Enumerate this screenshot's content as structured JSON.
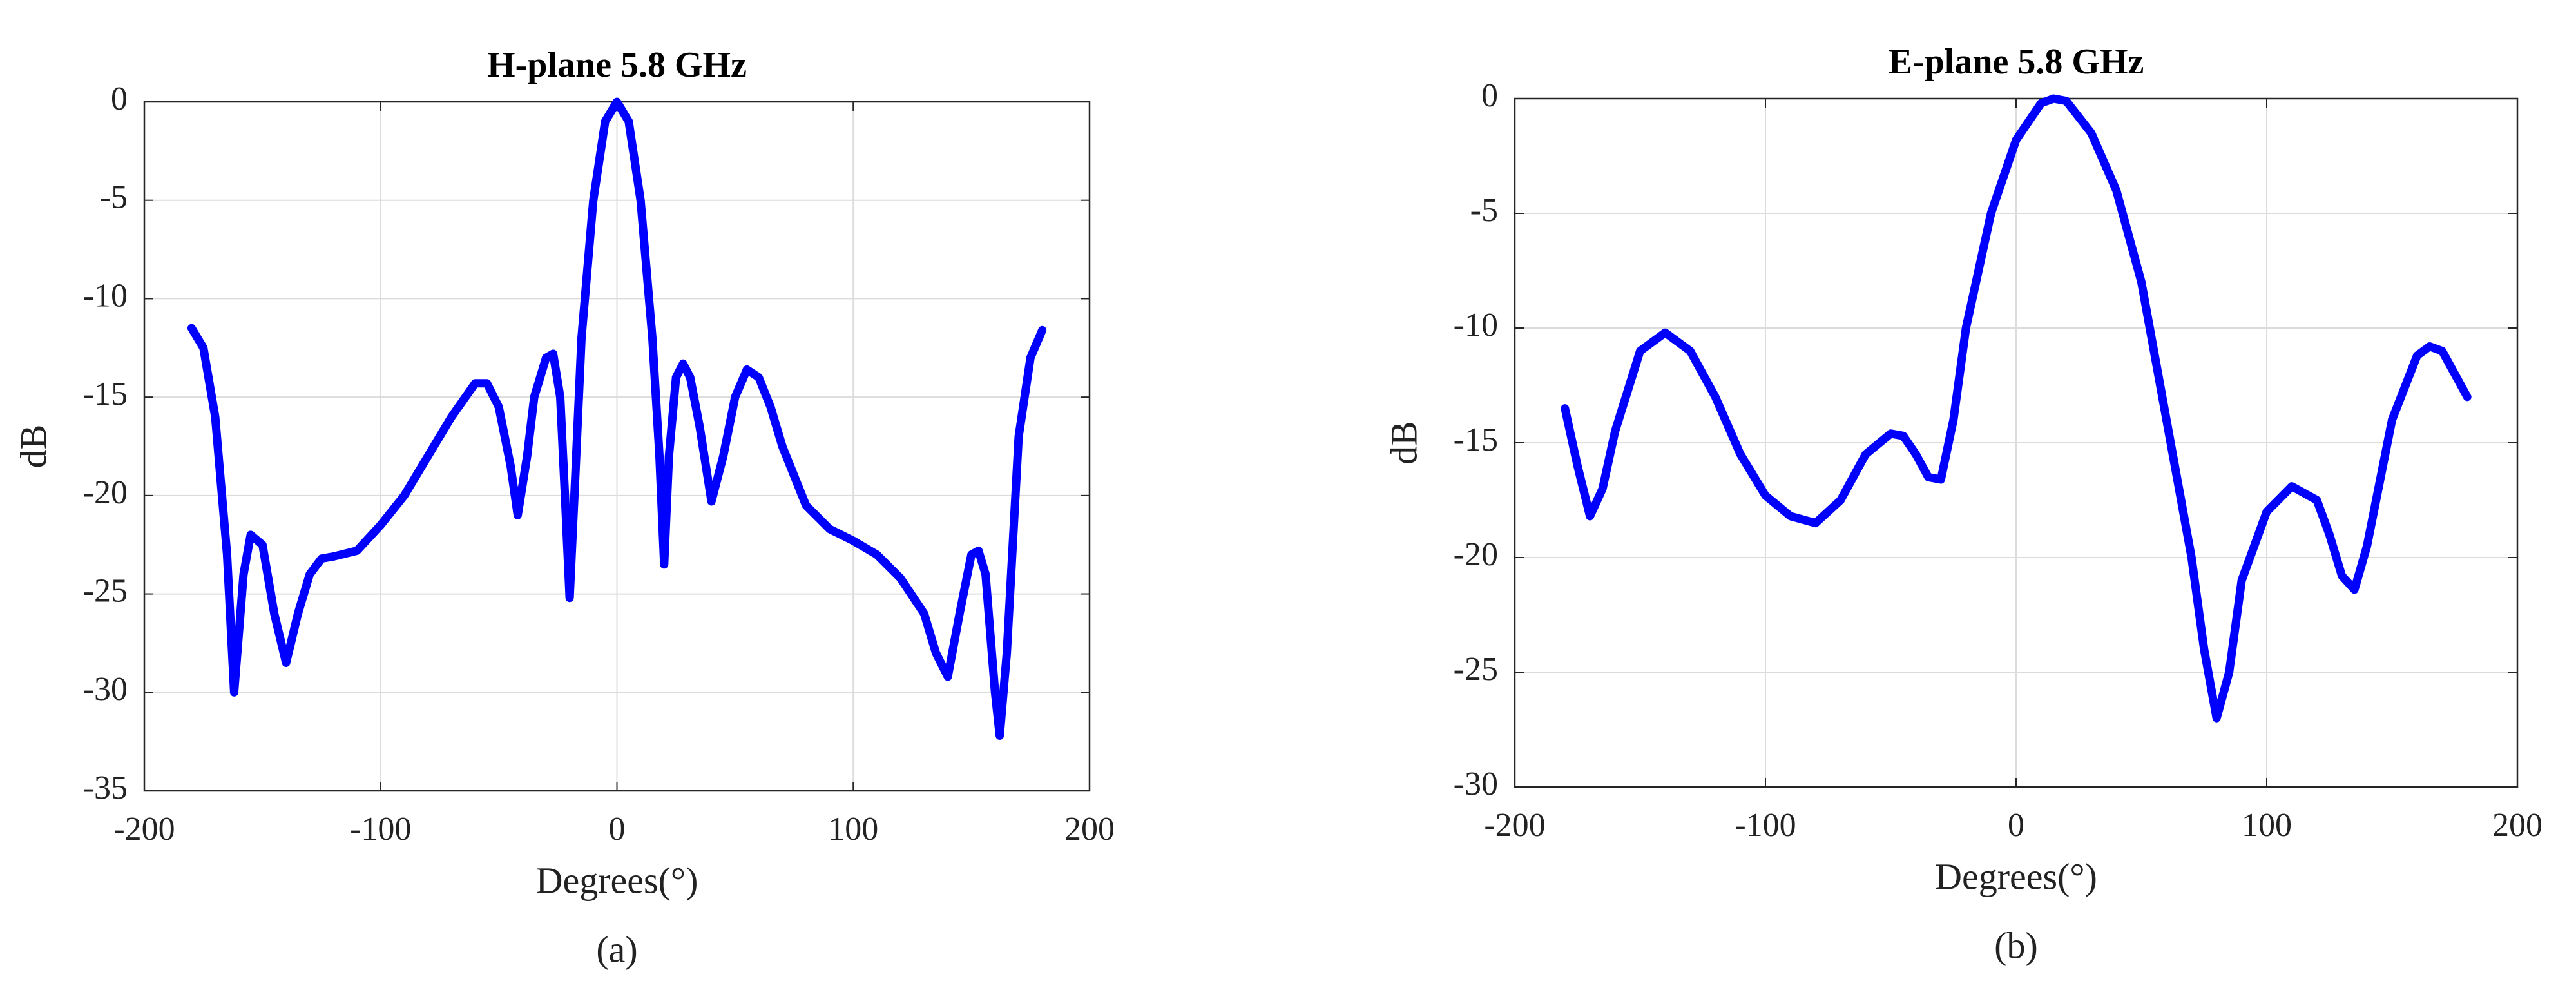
{
  "chart_data": [
    {
      "type": "line",
      "title": "H-plane 5.8 GHz",
      "xlabel": "Degrees(°)",
      "ylabel": "dB",
      "caption": "(a)",
      "color": "#0000ff",
      "grid": true,
      "xlim": [
        -200,
        200
      ],
      "ylim": [
        -35,
        0
      ],
      "xticks": [
        -200,
        -100,
        0,
        100,
        200
      ],
      "yticks": [
        0,
        -5,
        -10,
        -15,
        -20,
        -25,
        -30,
        -35
      ],
      "x": [
        -180,
        -175,
        -170,
        -165,
        -162,
        -158,
        -155,
        -150,
        -145,
        -140,
        -135,
        -130,
        -125,
        -120,
        -110,
        -100,
        -90,
        -80,
        -70,
        -60,
        -55,
        -50,
        -45,
        -42,
        -38,
        -35,
        -30,
        -27,
        -24,
        -22,
        -20,
        -18,
        -15,
        -10,
        -5,
        0,
        5,
        10,
        15,
        18,
        20,
        22,
        25,
        28,
        31,
        35,
        40,
        45,
        50,
        55,
        60,
        65,
        70,
        80,
        90,
        100,
        110,
        120,
        130,
        135,
        140,
        145,
        150,
        153,
        156,
        160,
        162,
        165,
        170,
        175,
        180
      ],
      "values": [
        -11.5,
        -12.5,
        -16,
        -23,
        -30,
        -24,
        -22,
        -22.5,
        -26,
        -28.5,
        -26,
        -24,
        -23.2,
        -23.1,
        -22.8,
        -21.5,
        -20,
        -18,
        -16,
        -14.3,
        -14.3,
        -15.5,
        -18.5,
        -21,
        -18,
        -15,
        -13,
        -12.8,
        -15,
        -20,
        -25.2,
        -20,
        -12,
        -5,
        -1,
        0,
        -1,
        -5,
        -12,
        -18,
        -23.5,
        -18,
        -14,
        -13.3,
        -14,
        -16.5,
        -20.3,
        -18,
        -15,
        -13.6,
        -14,
        -15.5,
        -17.5,
        -20.5,
        -21.7,
        -22.3,
        -23,
        -24.2,
        -26,
        -28,
        -29.2,
        -26,
        -23,
        -22.8,
        -24,
        -30,
        -32.2,
        -28,
        -17,
        -13,
        -11.6
      ]
    },
    {
      "type": "line",
      "title": "E-plane 5.8 GHz",
      "xlabel": "Degrees(°)",
      "ylabel": "dB",
      "caption": "(b)",
      "color": "#0000ff",
      "grid": true,
      "xlim": [
        -200,
        200
      ],
      "ylim": [
        -30,
        0
      ],
      "xticks": [
        -200,
        -100,
        0,
        100,
        200
      ],
      "yticks": [
        0,
        -5,
        -10,
        -15,
        -20,
        -25,
        -30
      ],
      "x": [
        -180,
        -175,
        -170,
        -165,
        -160,
        -150,
        -140,
        -130,
        -120,
        -110,
        -100,
        -90,
        -80,
        -70,
        -60,
        -50,
        -45,
        -40,
        -35,
        -30,
        -25,
        -20,
        -10,
        0,
        10,
        15,
        20,
        30,
        40,
        50,
        60,
        70,
        75,
        80,
        85,
        90,
        100,
        110,
        120,
        125,
        130,
        135,
        140,
        150,
        160,
        165,
        170,
        175,
        180
      ],
      "values": [
        -13.5,
        -16,
        -18.2,
        -17,
        -14.5,
        -11,
        -10.2,
        -11,
        -13,
        -15.5,
        -17.3,
        -18.2,
        -18.5,
        -17.5,
        -15.5,
        -14.6,
        -14.7,
        -15.5,
        -16.5,
        -16.6,
        -14,
        -10,
        -5,
        -1.8,
        -0.2,
        0,
        -0.1,
        -1.5,
        -4,
        -8,
        -14,
        -20,
        -24,
        -27,
        -25,
        -21,
        -18,
        -16.9,
        -17.5,
        -19,
        -20.8,
        -21.4,
        -19.5,
        -14,
        -11.2,
        -10.8,
        -11,
        -12,
        -13
      ]
    }
  ]
}
